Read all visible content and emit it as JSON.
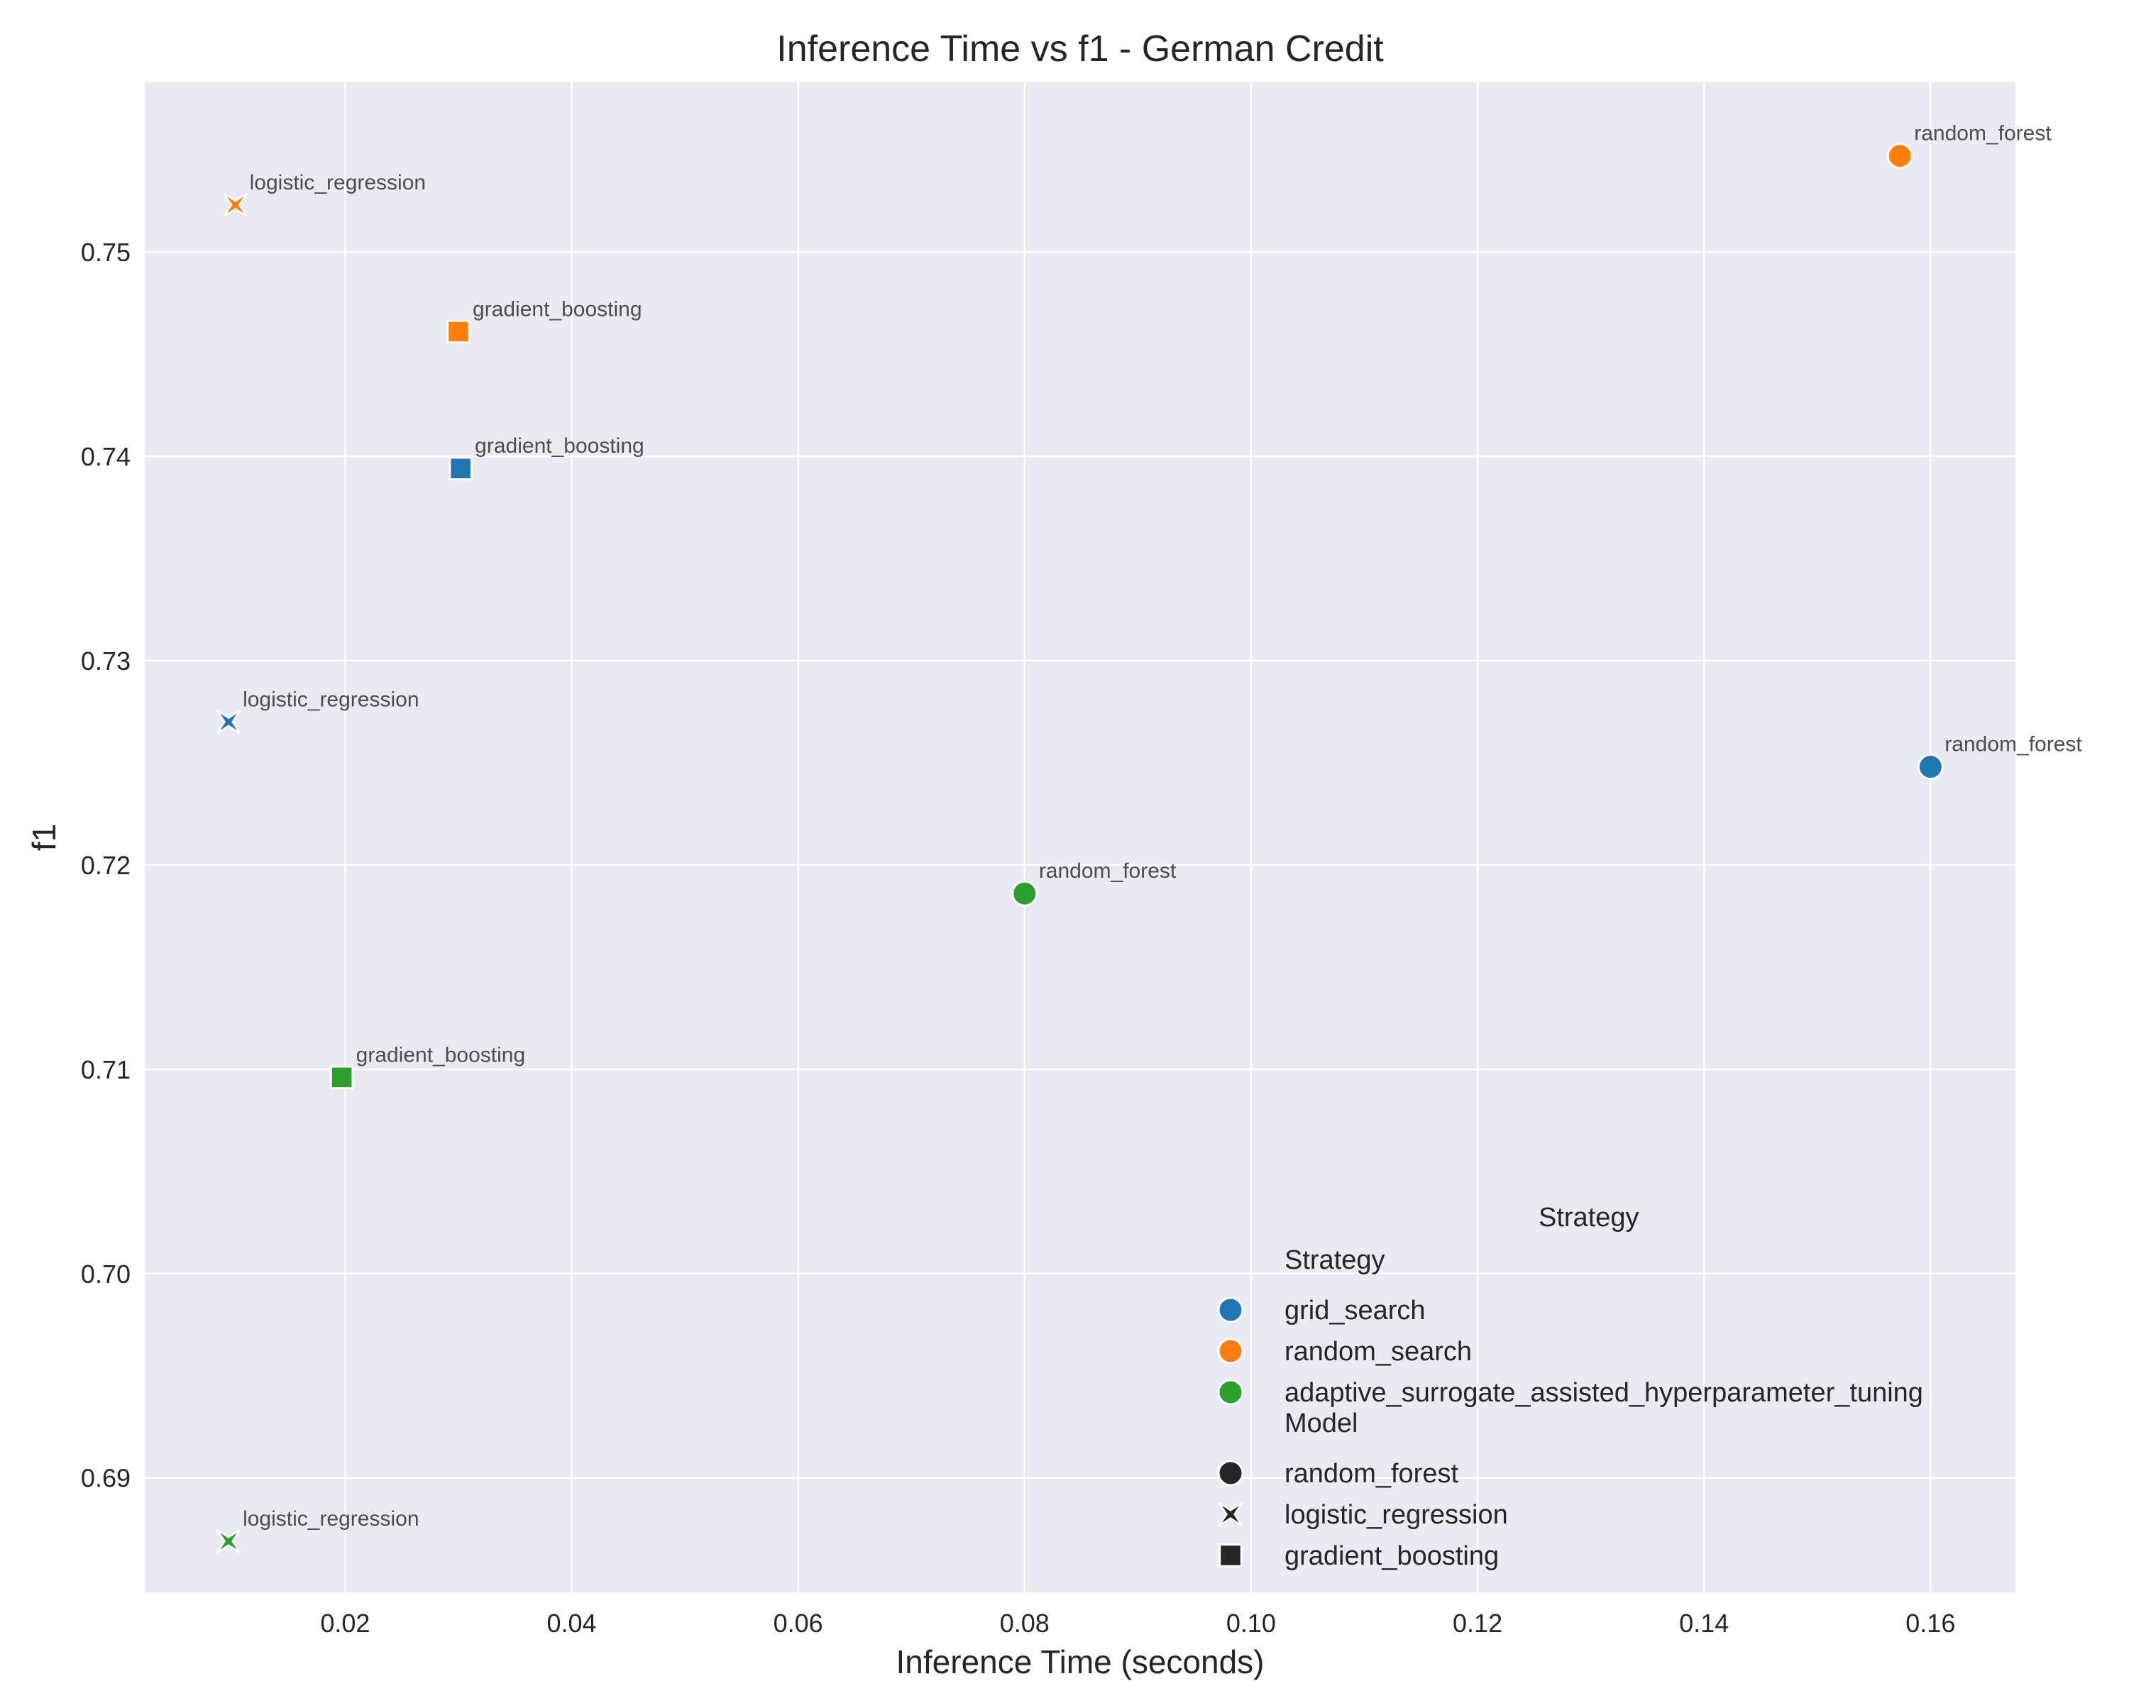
{
  "chart_data": {
    "type": "scatter",
    "title": "Inference Time vs f1 - German Credit",
    "xlabel": "Inference Time (seconds)",
    "ylabel": "f1",
    "xlim": [
      0.0023,
      0.1675
    ],
    "ylim": [
      0.6844,
      0.7583
    ],
    "x_ticks": [
      0.02,
      0.04,
      0.06,
      0.08,
      0.1,
      0.12,
      0.14,
      0.16
    ],
    "x_tick_labels": [
      "0.02",
      "0.04",
      "0.06",
      "0.08",
      "0.10",
      "0.12",
      "0.14",
      "0.16"
    ],
    "y_ticks": [
      0.69,
      0.7,
      0.71,
      0.72,
      0.73,
      0.74,
      0.75
    ],
    "y_tick_labels": [
      "0.69",
      "0.70",
      "0.71",
      "0.72",
      "0.73",
      "0.74",
      "0.75"
    ],
    "grid": true,
    "legend_placement": "lower-right",
    "strategies": [
      {
        "name": "grid_search",
        "color": "#1f77b4"
      },
      {
        "name": "random_search",
        "color": "#ff7f0e"
      },
      {
        "name": "adaptive_surrogate_assisted_hyperparameter_tuning",
        "color": "#2ca02c"
      }
    ],
    "models": [
      {
        "name": "random_forest",
        "marker": "circle"
      },
      {
        "name": "logistic_regression",
        "marker": "x"
      },
      {
        "name": "gradient_boosting",
        "marker": "square"
      }
    ],
    "points": [
      {
        "strategy": "grid_search",
        "model": "random_forest",
        "x": 0.16,
        "y": 0.7248,
        "label": "random_forest"
      },
      {
        "strategy": "grid_search",
        "model": "logistic_regression",
        "x": 0.0097,
        "y": 0.727,
        "label": "logistic_regression"
      },
      {
        "strategy": "grid_search",
        "model": "gradient_boosting",
        "x": 0.0302,
        "y": 0.7394,
        "label": "gradient_boosting"
      },
      {
        "strategy": "random_search",
        "model": "random_forest",
        "x": 0.1573,
        "y": 0.7547,
        "label": "random_forest"
      },
      {
        "strategy": "random_search",
        "model": "logistic_regression",
        "x": 0.0103,
        "y": 0.7523,
        "label": "logistic_regression"
      },
      {
        "strategy": "random_search",
        "model": "gradient_boosting",
        "x": 0.03,
        "y": 0.7461,
        "label": "gradient_boosting"
      },
      {
        "strategy": "adaptive_surrogate_assisted_hyperparameter_tuning",
        "model": "random_forest",
        "x": 0.08,
        "y": 0.7186,
        "label": "random_forest"
      },
      {
        "strategy": "adaptive_surrogate_assisted_hyperparameter_tuning",
        "model": "logistic_regression",
        "x": 0.0097,
        "y": 0.6869,
        "label": "logistic_regression"
      },
      {
        "strategy": "adaptive_surrogate_assisted_hyperparameter_tuning",
        "model": "gradient_boosting",
        "x": 0.0197,
        "y": 0.7096,
        "label": "gradient_boosting"
      }
    ],
    "legend": {
      "outer_title": "Strategy",
      "strategy_title": "Strategy",
      "model_title": "Model"
    }
  }
}
